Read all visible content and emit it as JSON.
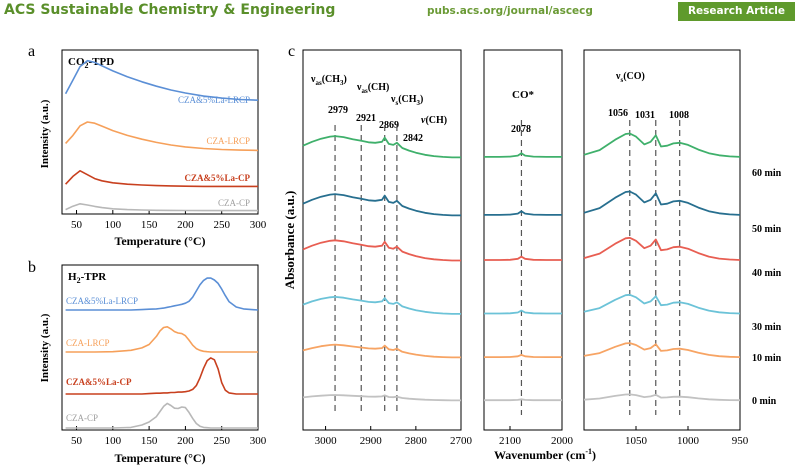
{
  "header": {
    "journal": "ACS Sustainable Chemistry & Engineering",
    "url": "pubs.acs.org/journal/ascecg",
    "badge": "Research Article"
  },
  "colors": {
    "blue": "#5b8fd6",
    "orange": "#f6a05a",
    "red": "#c8401f",
    "gray": "#b8b8b8",
    "green": "#3fb06b",
    "teal": "#276f8f",
    "coral": "#e85e52",
    "light_blue": "#6cc3d8",
    "light_orange": "#f7a464",
    "light_gray": "#c2c2c2"
  },
  "chart_data": [
    {
      "panel": "a",
      "type": "line",
      "title": "CO2-TPD",
      "title_main": "CO",
      "title_sub": "2",
      "title_rest": "-TPD",
      "xlabel": "Temperature (°C)",
      "ylabel": "Intensity (a.u.)",
      "xlim": [
        30,
        300
      ],
      "xticks": [
        50,
        100,
        150,
        200,
        250,
        300
      ],
      "x": [
        35,
        45,
        55,
        65,
        75,
        85,
        100,
        120,
        140,
        160,
        180,
        200,
        225,
        250,
        275,
        300
      ],
      "series": [
        {
          "name": "CZA&5%La-LRCP",
          "color": "#5b8fd6",
          "offset": 3.0,
          "values": [
            0.45,
            0.85,
            1.25,
            1.42,
            1.37,
            1.27,
            1.12,
            0.95,
            0.8,
            0.67,
            0.56,
            0.47,
            0.38,
            0.32,
            0.28,
            0.26
          ]
        },
        {
          "name": "CZA-LRCP",
          "color": "#f6a05a",
          "offset": 2.0,
          "values": [
            0.3,
            0.55,
            0.85,
            0.97,
            0.93,
            0.84,
            0.7,
            0.55,
            0.43,
            0.33,
            0.25,
            0.19,
            0.14,
            0.11,
            0.09,
            0.08
          ]
        },
        {
          "name": "CZA&5%La-CP",
          "color": "#c8401f",
          "offset": 1.0,
          "values": [
            0.1,
            0.38,
            0.58,
            0.44,
            0.3,
            0.22,
            0.15,
            0.1,
            0.07,
            0.05,
            0.04,
            0.03,
            0.02,
            0.02,
            0.02,
            0.02
          ]
        },
        {
          "name": "CZA-CP",
          "color": "#b8b8b8",
          "offset": 0.0,
          "values": [
            0.12,
            0.4,
            0.6,
            0.5,
            0.38,
            0.28,
            0.18,
            0.12,
            0.08,
            0.06,
            0.05,
            0.04,
            0.03,
            0.03,
            0.03,
            0.03
          ]
        }
      ]
    },
    {
      "panel": "b",
      "type": "line",
      "title": "H2-TPR",
      "title_main": "H",
      "title_sub": "2",
      "title_rest": "-TPR",
      "xlabel": "Temperature (°C)",
      "ylabel": "Intensity (a.u.)",
      "xlim": [
        30,
        300
      ],
      "xticks": [
        50,
        100,
        150,
        200,
        250,
        300
      ],
      "x": [
        35,
        50,
        75,
        100,
        125,
        140,
        150,
        160,
        165,
        170,
        175,
        180,
        185,
        190,
        195,
        200,
        205,
        210,
        215,
        220,
        225,
        230,
        235,
        240,
        245,
        250,
        255,
        260,
        270,
        280,
        300
      ],
      "series": [
        {
          "name": "CZA&5%La-LRCP",
          "color": "#5b8fd6",
          "offset": 3.0,
          "values": [
            0,
            0,
            0,
            0,
            0,
            0.01,
            0.02,
            0.03,
            0.04,
            0.05,
            0.07,
            0.09,
            0.11,
            0.13,
            0.15,
            0.18,
            0.23,
            0.34,
            0.5,
            0.66,
            0.78,
            0.84,
            0.84,
            0.79,
            0.7,
            0.55,
            0.38,
            0.22,
            0.08,
            0.03,
            0
          ]
        },
        {
          "name": "CZA-LRCP",
          "color": "#f6a05a",
          "offset": 2.0,
          "values": [
            0,
            0,
            0,
            0.01,
            0.05,
            0.12,
            0.22,
            0.46,
            0.62,
            0.72,
            0.74,
            0.68,
            0.6,
            0.56,
            0.54,
            0.48,
            0.35,
            0.2,
            0.1,
            0.05,
            0.02,
            0.01,
            0,
            0,
            0,
            0,
            0,
            0,
            0,
            0,
            0
          ]
        },
        {
          "name": "CZA&5%La-CP",
          "color": "#c8401f",
          "offset": 1.0,
          "values": [
            0,
            0,
            0,
            0,
            0,
            0,
            0.01,
            0.02,
            0.02,
            0.03,
            0.03,
            0.04,
            0.04,
            0.05,
            0.05,
            0.06,
            0.08,
            0.12,
            0.22,
            0.42,
            0.68,
            0.88,
            0.95,
            0.9,
            0.66,
            0.3,
            0.1,
            0.03,
            0,
            0,
            0
          ]
        },
        {
          "name": "CZA-CP",
          "color": "#b8b8b8",
          "offset": 0.0,
          "values": [
            0,
            0,
            0,
            0,
            0.02,
            0.1,
            0.2,
            0.38,
            0.55,
            0.72,
            0.82,
            0.75,
            0.66,
            0.65,
            0.7,
            0.68,
            0.52,
            0.32,
            0.15,
            0.06,
            0.02,
            0.01,
            0,
            0,
            0,
            0,
            0,
            0,
            0,
            0,
            0
          ]
        }
      ]
    },
    {
      "panel": "c",
      "type": "line",
      "xlabel": "Wavenumber (cm-1)",
      "xlabel_main": "Wavenumber (cm",
      "xlabel_sup": "-1",
      "xlabel_end": ")",
      "ylabel": "Absorbance (a.u.)",
      "times": [
        "60 min",
        "50 min",
        "40 min",
        "30 min",
        "10 min",
        "0 min"
      ],
      "series_colors": [
        "#3fb06b",
        "#276f8f",
        "#e85e52",
        "#6cc3d8",
        "#f7a464",
        "#c2c2c2"
      ],
      "series_scales": [
        1.0,
        1.0,
        0.95,
        0.8,
        0.6,
        0.25
      ],
      "subplots": [
        {
          "xlim": [
            3050,
            2700
          ],
          "xticks": [
            3000,
            2900,
            2800,
            2700
          ],
          "x": [
            3050,
            3030,
            3010,
            2990,
            2979,
            2960,
            2940,
            2921,
            2905,
            2890,
            2875,
            2869,
            2860,
            2850,
            2842,
            2830,
            2815,
            2800,
            2780,
            2760,
            2740,
            2720,
            2700
          ],
          "shape": [
            0.55,
            0.7,
            0.82,
            0.9,
            0.92,
            0.88,
            0.8,
            0.74,
            0.68,
            0.66,
            0.7,
            0.86,
            0.62,
            0.58,
            0.66,
            0.46,
            0.36,
            0.28,
            0.2,
            0.15,
            0.12,
            0.1,
            0.1
          ],
          "peaks": [
            {
              "label": "2979",
              "x": 2979
            },
            {
              "label": "2921",
              "x": 2921
            },
            {
              "label": "2869",
              "x": 2869
            },
            {
              "label": "2842",
              "x": 2842
            }
          ],
          "assignments": [
            {
              "main": "ν",
              "sub": "as",
              "rest": "(CH",
              "sub2": "3",
              "end": ")"
            },
            {
              "main": "ν",
              "sub": "as",
              "rest": "(CH)",
              "sub2": "",
              "end": ""
            },
            {
              "main": "ν",
              "sub": "s",
              "rest": "(CH",
              "sub2": "3",
              "end": ")"
            },
            {
              "main": "ν",
              "sub": "",
              "rest": "(CH)",
              "sub2": "",
              "end": ""
            }
          ]
        },
        {
          "xlim": [
            2150,
            2000
          ],
          "xticks": [
            2100,
            2000
          ],
          "x": [
            2150,
            2120,
            2100,
            2085,
            2078,
            2071,
            2055,
            2030,
            2000
          ],
          "shape": [
            0.12,
            0.12,
            0.13,
            0.17,
            0.26,
            0.17,
            0.13,
            0.12,
            0.12
          ],
          "peaks": [
            {
              "label": "2078",
              "x": 2078
            }
          ],
          "assignments": [
            {
              "main": "CO*",
              "sub": "",
              "rest": "",
              "sub2": "",
              "end": ""
            }
          ]
        },
        {
          "xlim": [
            1100,
            950
          ],
          "xticks": [
            1050,
            1000,
            950
          ],
          "x": [
            1100,
            1085,
            1070,
            1060,
            1056,
            1050,
            1042,
            1036,
            1031,
            1026,
            1020,
            1014,
            1008,
            1000,
            990,
            980,
            970,
            960,
            950
          ],
          "shape": [
            0.2,
            0.38,
            0.78,
            1.0,
            1.02,
            0.9,
            0.6,
            0.7,
            0.95,
            0.52,
            0.55,
            0.64,
            0.66,
            0.58,
            0.4,
            0.26,
            0.18,
            0.14,
            0.12
          ],
          "peaks": [
            {
              "label": "1056",
              "x": 1056
            },
            {
              "label": "1031",
              "x": 1031
            },
            {
              "label": "1008",
              "x": 1008
            }
          ],
          "assignments": [
            {
              "main": "ν",
              "sub": "s",
              "rest": "(CO)",
              "sub2": "",
              "end": ""
            }
          ]
        }
      ]
    }
  ]
}
